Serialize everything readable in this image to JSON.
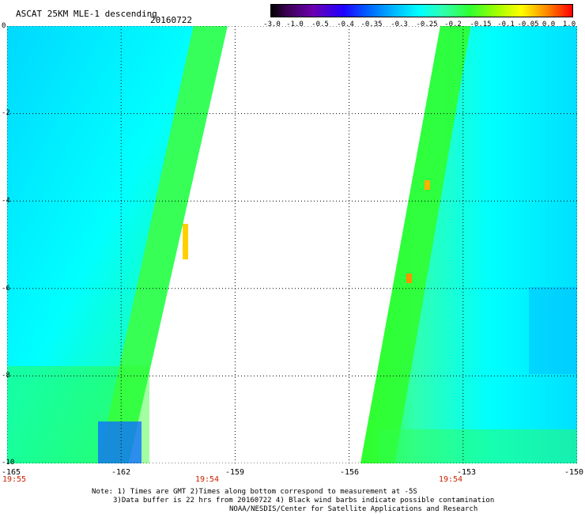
{
  "header": {
    "title": "ASCAT 25KM MLE-1 descending",
    "date": "20160722"
  },
  "colorbar": {
    "labels": [
      "-3.0",
      "-1.0",
      "-0.5",
      "-0.4",
      "-0.35",
      "-0.3",
      "-0.25",
      "-0.2",
      "-0.15",
      "-0.1",
      "-0.05",
      "0.0",
      "1.0"
    ],
    "colors": [
      "#000000",
      "#3a0050",
      "#6a00b0",
      "#2000ff",
      "#0060ff",
      "#00b0ff",
      "#00ffff",
      "#30ffb0",
      "#30ff30",
      "#a0ff00",
      "#ffff00",
      "#ff9000",
      "#ff0000"
    ]
  },
  "map": {
    "lon_range": [
      -165,
      -150
    ],
    "lat_range": [
      -10,
      0
    ],
    "x_ticks": [
      "-165",
      "-162",
      "-159",
      "-156",
      "-153",
      "-150"
    ],
    "y_ticks": [
      "0",
      "-2",
      "-4",
      "-6",
      "-8",
      "-10"
    ],
    "time_labels": [
      "19:55",
      "19:54",
      "19:54"
    ]
  },
  "swaths": {
    "left": {
      "lon_west": -165,
      "lon_east_at_top": -159.2,
      "lon_east_at_bottom": -161.8
    },
    "right": {
      "lon_west_at_top": -153.6,
      "lon_west_at_bottom": -155.7,
      "lon_east": -150
    }
  },
  "notes": {
    "line1": "Note: 1) Times are GMT 2)Times along bottom correspond to measurement at -5S",
    "line2": "3)Data buffer is 22 hrs from 20160722 4) Black wind barbs indicate possible contamination",
    "line3": "NOAA/NESDIS/Center for Satellite Applications and Research"
  }
}
